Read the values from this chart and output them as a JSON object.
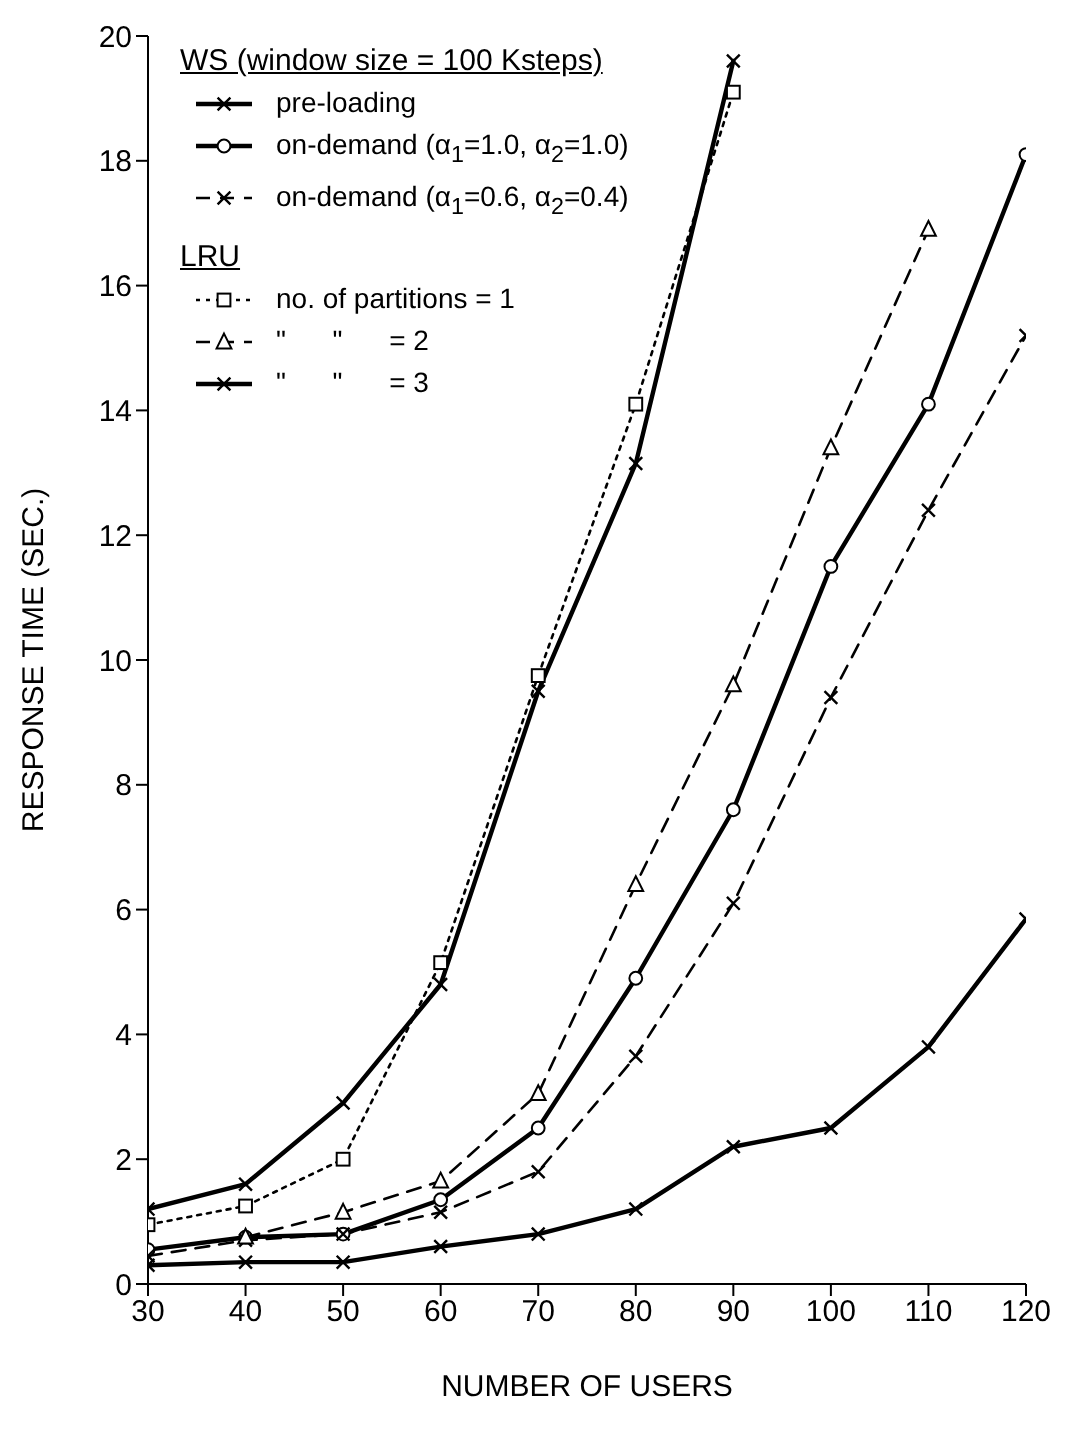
{
  "chart_data": {
    "type": "line",
    "xlabel": "NUMBER OF USERS",
    "ylabel": "RESPONSE TIME (SEC.)",
    "annotations": [
      "WS (window size = 100 Ksteps)",
      "LRU"
    ],
    "x": [
      30,
      40,
      50,
      60,
      70,
      80,
      90,
      100,
      110,
      120
    ],
    "xlim": [
      30,
      120
    ],
    "xticks": [
      30,
      40,
      50,
      60,
      70,
      80,
      90,
      100,
      110,
      120
    ],
    "ylim": [
      0,
      20
    ],
    "yticks": [
      0,
      2,
      4,
      6,
      8,
      10,
      12,
      14,
      16,
      18,
      20
    ],
    "grid": false,
    "legend": "top left",
    "series": [
      {
        "name": "pre-loading",
        "color": "#000000",
        "marker": "cross",
        "line_style": "solid",
        "values": [
          0.3,
          0.35,
          0.35,
          0.6,
          0.8,
          1.2,
          2.2,
          2.5,
          3.8,
          5.85
        ]
      },
      {
        "name": "on-demand (α$_{1}$=1.0, α$_{2}$=1.0)",
        "color": "#000000",
        "marker": "circle",
        "line_style": "solid",
        "values": [
          0.55,
          0.75,
          0.8,
          1.35,
          2.5,
          4.9,
          7.6,
          11.5,
          14.1,
          18.1
        ]
      },
      {
        "name": "on-demand (α$_{1}$=0.6, α$_{2}$=0.4)",
        "color": "#000000",
        "marker": "cross",
        "line_style": "dashed",
        "values": [
          0.45,
          0.7,
          0.8,
          1.15,
          1.8,
          3.65,
          6.1,
          9.4,
          12.4,
          15.2
        ]
      },
      {
        "name": "no. of partitions = 1",
        "color": "#000000",
        "marker": "square",
        "line_style": "dotted",
        "values": [
          0.95,
          1.25,
          2.0,
          5.15,
          9.75,
          14.1,
          19.1,
          null,
          null,
          null
        ]
      },
      {
        "name": "\"      \"      = 2",
        "color": "#000000",
        "marker": "triangle",
        "line_style": "dashed",
        "values": [
          null,
          0.75,
          1.15,
          1.65,
          3.05,
          6.4,
          9.6,
          13.4,
          16.9,
          null
        ]
      },
      {
        "name": "\"      \"      = 3",
        "color": "#000000",
        "marker": "cross",
        "line_style": "solid",
        "values": [
          1.2,
          1.6,
          2.9,
          4.8,
          9.5,
          13.15,
          19.6,
          null,
          null,
          null
        ]
      }
    ]
  }
}
